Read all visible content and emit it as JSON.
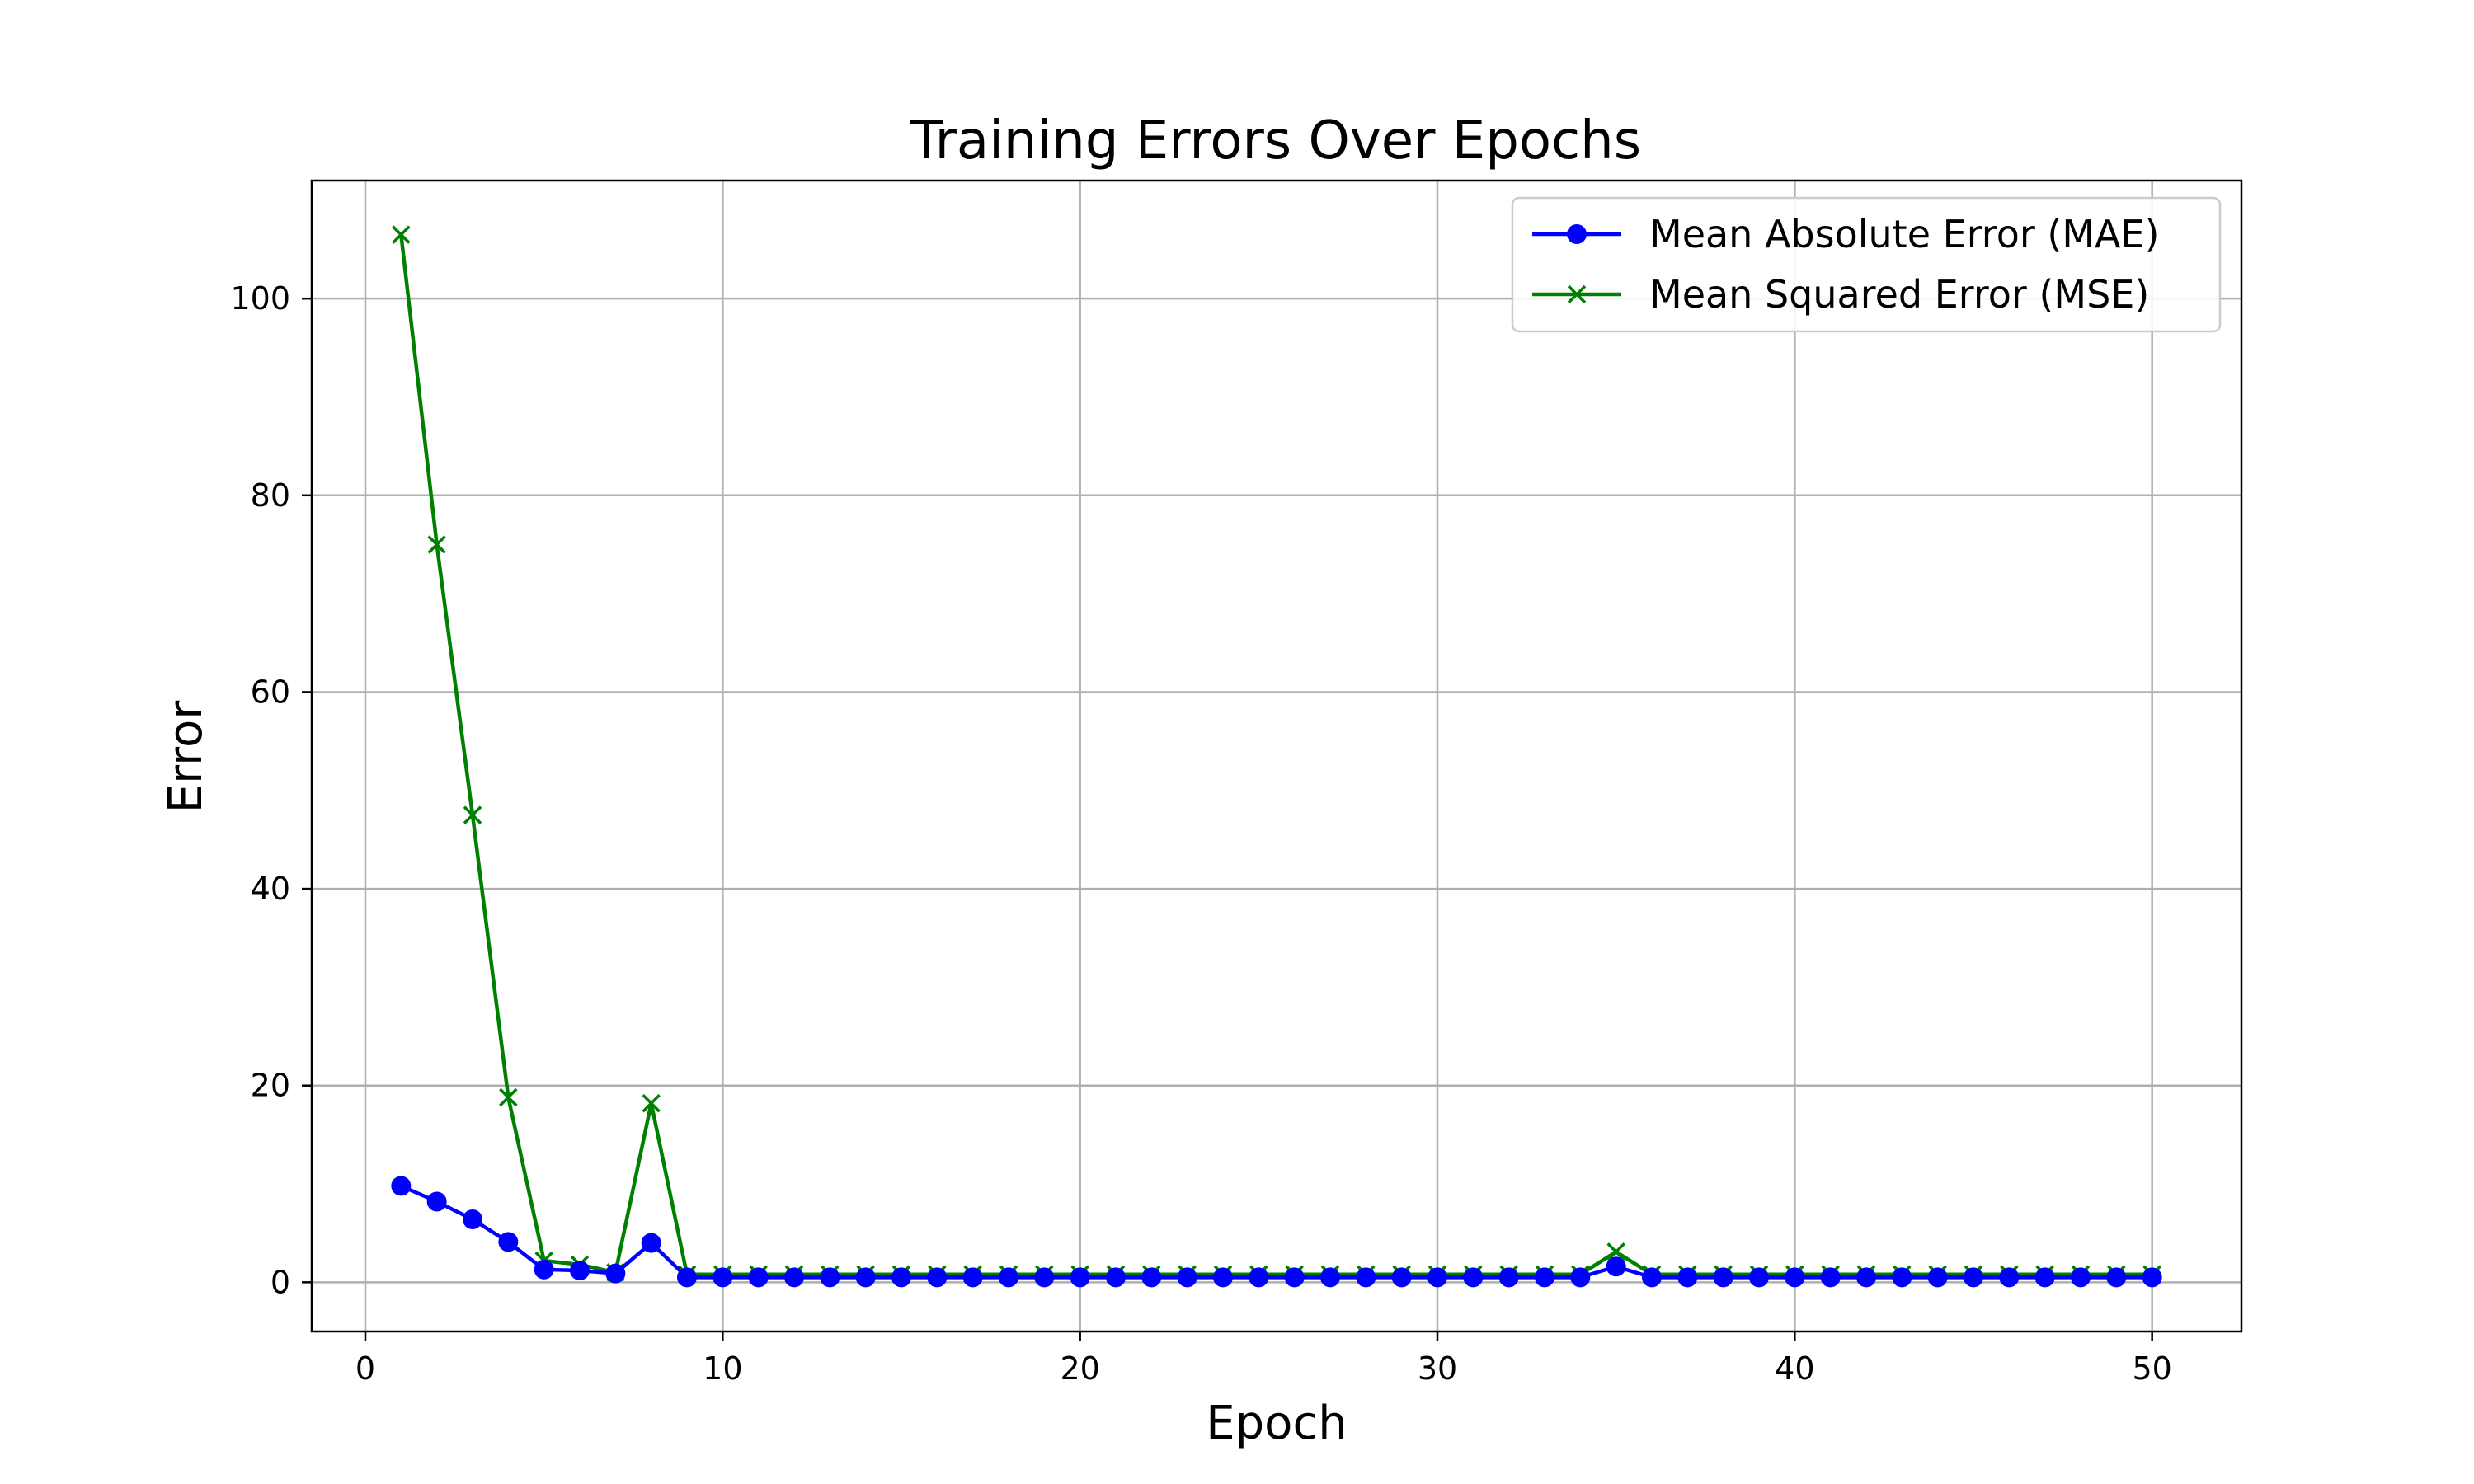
{
  "chart_data": {
    "type": "line",
    "title": "Training Errors Over Epochs",
    "xlabel": "Epoch",
    "ylabel": "Error",
    "xlim": [
      -1.5,
      52.5
    ],
    "ylim": [
      -5,
      112
    ],
    "xticks": [
      0,
      10,
      20,
      30,
      40,
      50
    ],
    "yticks": [
      0,
      20,
      40,
      60,
      80,
      100
    ],
    "grid": true,
    "legend_position": "top-right",
    "x": [
      1,
      2,
      3,
      4,
      5,
      6,
      7,
      8,
      9,
      10,
      11,
      12,
      13,
      14,
      15,
      16,
      17,
      18,
      19,
      20,
      21,
      22,
      23,
      24,
      25,
      26,
      27,
      28,
      29,
      30,
      31,
      32,
      33,
      34,
      35,
      36,
      37,
      38,
      39,
      40,
      41,
      42,
      43,
      44,
      45,
      46,
      47,
      48,
      49,
      50
    ],
    "series": [
      {
        "name": "Mean Absolute Error (MAE)",
        "color": "#0000ff",
        "marker": "circle",
        "values": [
          9.8,
          8.2,
          6.4,
          4.1,
          1.3,
          1.2,
          0.9,
          4.0,
          0.5,
          0.5,
          0.5,
          0.5,
          0.5,
          0.5,
          0.5,
          0.5,
          0.5,
          0.5,
          0.5,
          0.5,
          0.5,
          0.5,
          0.5,
          0.5,
          0.5,
          0.5,
          0.5,
          0.5,
          0.5,
          0.5,
          0.5,
          0.5,
          0.5,
          0.5,
          1.6,
          0.5,
          0.5,
          0.5,
          0.5,
          0.5,
          0.5,
          0.5,
          0.5,
          0.5,
          0.5,
          0.5,
          0.5,
          0.5,
          0.5,
          0.5
        ]
      },
      {
        "name": "Mean Squared Error (MSE)",
        "color": "#008000",
        "marker": "x",
        "values": [
          106.5,
          75.0,
          47.5,
          18.8,
          2.2,
          1.8,
          1.0,
          18.2,
          0.8,
          0.8,
          0.8,
          0.8,
          0.8,
          0.8,
          0.8,
          0.8,
          0.8,
          0.8,
          0.8,
          0.8,
          0.8,
          0.8,
          0.8,
          0.8,
          0.8,
          0.8,
          0.8,
          0.8,
          0.8,
          0.8,
          0.8,
          0.8,
          0.8,
          0.8,
          3.1,
          0.8,
          0.8,
          0.8,
          0.8,
          0.8,
          0.8,
          0.8,
          0.8,
          0.8,
          0.8,
          0.8,
          0.8,
          0.8,
          0.8,
          0.8
        ]
      }
    ]
  }
}
